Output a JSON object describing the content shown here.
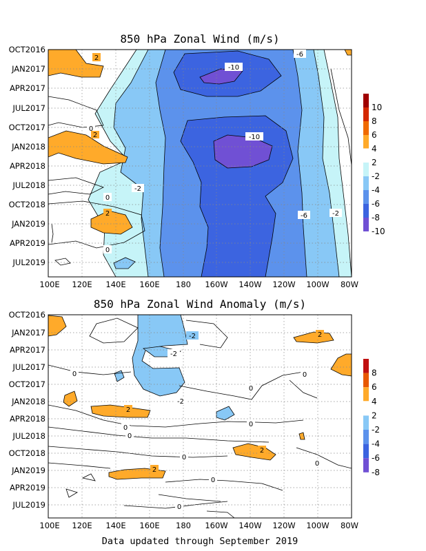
{
  "footer": "Data updated through September 2019",
  "chart_data": [
    {
      "type": "heatmap",
      "title": "850 hPa Zonal Wind (m/s)",
      "x_tick_labels": [
        "100E",
        "120E",
        "140E",
        "160E",
        "180",
        "160W",
        "140W",
        "120W",
        "100W",
        "80W"
      ],
      "y_tick_labels": [
        "OCT2016",
        "JAN2017",
        "APR2017",
        "JUL2017",
        "OCT2017",
        "JAN2018",
        "APR2018",
        "JUL2018",
        "OCT2018",
        "JAN2019",
        "APR2019",
        "JUL2019"
      ],
      "xlim": [
        "100E",
        "80W"
      ],
      "ylim": [
        "OCT2016",
        "SEP2019"
      ],
      "colorbar": {
        "labels": [
          "10",
          "8",
          "6",
          "4",
          "2",
          "-2",
          "-4",
          "-6",
          "-8",
          "-10"
        ],
        "colors": [
          "#a00000",
          "#d42800",
          "#f06a00",
          "#ffaa2a",
          "#ffffff",
          "#c6f4f8",
          "#88c8f6",
          "#5c92ec",
          "#3c64e0",
          "#7050d4"
        ]
      },
      "contour_labels": [
        "2",
        "-6",
        "-10",
        "0",
        "2",
        "-10",
        "-2",
        "0",
        "2",
        "-6",
        "-2",
        "0"
      ],
      "grid": true,
      "legend": "right"
    },
    {
      "type": "heatmap",
      "title": "850 hPa Zonal Wind Anomaly (m/s)",
      "x_tick_labels": [
        "100E",
        "120E",
        "140E",
        "160E",
        "180",
        "160W",
        "140W",
        "120W",
        "100W",
        "80W"
      ],
      "y_tick_labels": [
        "OCT2016",
        "JAN2017",
        "APR2017",
        "JUL2017",
        "OCT2017",
        "JAN2018",
        "APR2018",
        "JUL2018",
        "OCT2018",
        "JAN2019",
        "APR2019",
        "JUL2019"
      ],
      "xlim": [
        "100E",
        "80W"
      ],
      "ylim": [
        "OCT2016",
        "SEP2019"
      ],
      "colorbar": {
        "labels": [
          "8",
          "6",
          "4",
          "2",
          "-2",
          "-4",
          "-6",
          "-8"
        ],
        "colors": [
          "#c01010",
          "#e85800",
          "#ffaa2a",
          "#ffffff",
          "#88c8f6",
          "#5c92ec",
          "#3c64e0",
          "#7050d4"
        ]
      },
      "contour_labels": [
        "-2",
        "2",
        "-2",
        "0",
        "0",
        "0",
        "-2",
        "2",
        "0",
        "0",
        "0",
        "2",
        "0",
        "2",
        "0",
        "0",
        "0"
      ],
      "grid": true,
      "legend": "right"
    }
  ]
}
